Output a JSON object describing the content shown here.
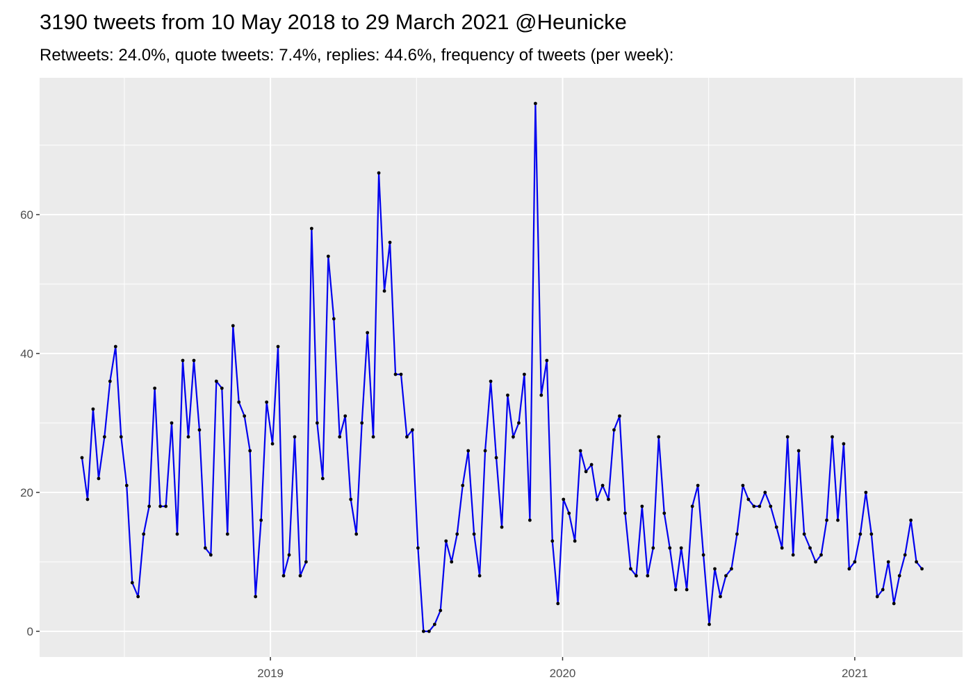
{
  "chart_data": {
    "type": "line",
    "title": "3190 tweets from 10 May 2018 to 29 March 2021 @Heunicke",
    "subtitle": "Retweets: 24.0%, quote tweets: 7.4%, replies: 44.6%, frequency of tweets (per week):",
    "x": [
      2018.355,
      2018.374,
      2018.393,
      2018.412,
      2018.432,
      2018.451,
      2018.47,
      2018.489,
      2018.508,
      2018.527,
      2018.547,
      2018.566,
      2018.585,
      2018.604,
      2018.623,
      2018.642,
      2018.662,
      2018.681,
      2018.7,
      2018.719,
      2018.738,
      2018.757,
      2018.777,
      2018.796,
      2018.815,
      2018.834,
      2018.853,
      2018.872,
      2018.892,
      2018.911,
      2018.93,
      2018.949,
      2018.968,
      2018.987,
      2019.007,
      2019.026,
      2019.045,
      2019.064,
      2019.083,
      2019.102,
      2019.122,
      2019.141,
      2019.16,
      2019.179,
      2019.198,
      2019.217,
      2019.237,
      2019.256,
      2019.275,
      2019.294,
      2019.313,
      2019.332,
      2019.352,
      2019.371,
      2019.39,
      2019.409,
      2019.428,
      2019.447,
      2019.467,
      2019.486,
      2019.505,
      2019.524,
      2019.543,
      2019.562,
      2019.582,
      2019.601,
      2019.62,
      2019.639,
      2019.658,
      2019.677,
      2019.697,
      2019.716,
      2019.735,
      2019.754,
      2019.773,
      2019.792,
      2019.812,
      2019.831,
      2019.85,
      2019.869,
      2019.888,
      2019.907,
      2019.927,
      2019.946,
      2019.965,
      2019.984,
      2020.003,
      2020.022,
      2020.042,
      2020.061,
      2020.08,
      2020.099,
      2020.118,
      2020.137,
      2020.157,
      2020.176,
      2020.195,
      2020.214,
      2020.233,
      2020.252,
      2020.272,
      2020.291,
      2020.31,
      2020.329,
      2020.348,
      2020.367,
      2020.387,
      2020.406,
      2020.425,
      2020.444,
      2020.463,
      2020.482,
      2020.502,
      2020.521,
      2020.54,
      2020.559,
      2020.578,
      2020.597,
      2020.617,
      2020.636,
      2020.655,
      2020.674,
      2020.693,
      2020.712,
      2020.732,
      2020.751,
      2020.77,
      2020.789,
      2020.808,
      2020.827,
      2020.847,
      2020.866,
      2020.885,
      2020.904,
      2020.923,
      2020.942,
      2020.962,
      2020.981,
      2021.0,
      2021.019,
      2021.038,
      2021.057,
      2021.077,
      2021.096,
      2021.115,
      2021.134,
      2021.153,
      2021.172,
      2021.192,
      2021.211,
      2021.23
    ],
    "values": [
      25,
      19,
      32,
      22,
      28,
      36,
      41,
      28,
      21,
      7,
      5,
      14,
      18,
      35,
      18,
      18,
      30,
      14,
      39,
      28,
      39,
      29,
      12,
      11,
      36,
      35,
      14,
      44,
      33,
      31,
      26,
      5,
      16,
      33,
      27,
      41,
      8,
      11,
      28,
      8,
      10,
      58,
      30,
      22,
      54,
      45,
      28,
      31,
      19,
      14,
      30,
      43,
      28,
      66,
      49,
      56,
      37,
      37,
      28,
      29,
      12,
      0,
      0,
      1,
      3,
      13,
      10,
      14,
      21,
      26,
      14,
      8,
      26,
      36,
      25,
      15,
      34,
      28,
      30,
      37,
      16,
      76,
      34,
      39,
      13,
      4,
      19,
      17,
      13,
      26,
      23,
      24,
      19,
      21,
      19,
      29,
      31,
      17,
      9,
      8,
      18,
      8,
      12,
      28,
      17,
      12,
      6,
      12,
      6,
      18,
      21,
      11,
      1,
      9,
      5,
      8,
      9,
      14,
      21,
      19,
      18,
      18,
      20,
      18,
      15,
      12,
      28,
      11,
      26,
      14,
      12,
      10,
      11,
      16,
      28,
      16,
      27,
      9,
      10,
      14,
      20,
      14,
      5,
      6,
      10,
      4,
      8,
      11,
      16,
      10,
      9
    ],
    "color": "#0000ee",
    "marker_color": "#000000",
    "xlim": [
      2018.21,
      2021.369
    ],
    "ylim": [
      -3.7,
      79.7
    ],
    "xticks": [
      2019,
      2020,
      2021
    ],
    "yticks": [
      0,
      20,
      40,
      60
    ],
    "x_minor_ticks": [
      2018.5,
      2019.5,
      2020.5
    ],
    "y_minor_ticks": [
      10,
      30,
      50,
      70
    ],
    "grid": true
  }
}
